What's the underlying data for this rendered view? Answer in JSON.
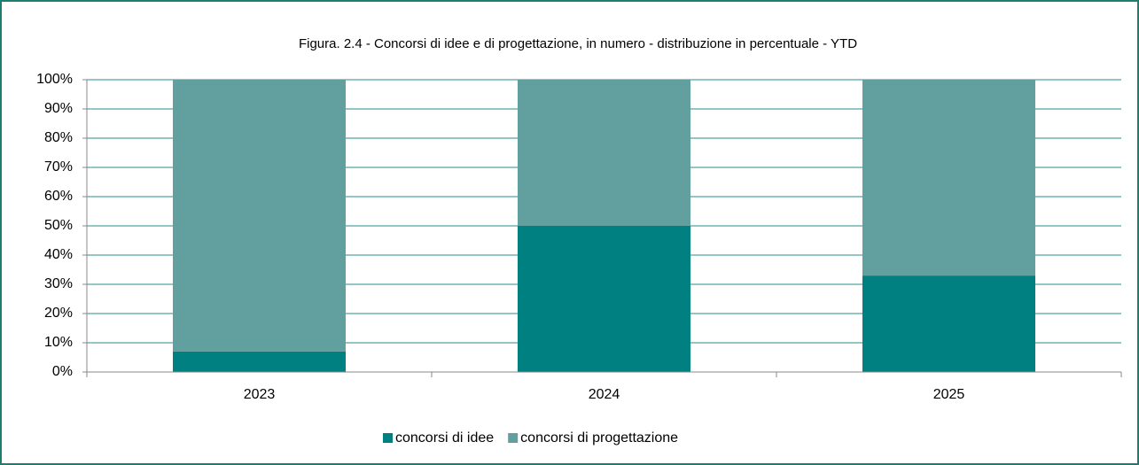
{
  "chart_data": {
    "type": "stacked_bar",
    "title": "Figura. 2.4 - Concorsi di idee e di progettazione, in numero - distribuzione in percentuale - YTD",
    "categories": [
      "2023",
      "2024",
      "2025"
    ],
    "series": [
      {
        "name": "concorsi di idee",
        "color": "#008080",
        "values": [
          7,
          50,
          33
        ]
      },
      {
        "name": "concorsi di progettazione",
        "color": "#62a0a0",
        "values": [
          93,
          50,
          67
        ]
      }
    ],
    "ylim": [
      0,
      100
    ],
    "yticks": [
      {
        "value": 0,
        "label": "0%"
      },
      {
        "value": 10,
        "label": "10%"
      },
      {
        "value": 20,
        "label": "20%"
      },
      {
        "value": 30,
        "label": "30%"
      },
      {
        "value": 40,
        "label": "40%"
      },
      {
        "value": 50,
        "label": "50%"
      },
      {
        "value": 60,
        "label": "60%"
      },
      {
        "value": 70,
        "label": "70%"
      },
      {
        "value": 80,
        "label": "80%"
      },
      {
        "value": 90,
        "label": "90%"
      },
      {
        "value": 100,
        "label": "100%"
      }
    ],
    "grid": true,
    "legend": "bottom"
  }
}
